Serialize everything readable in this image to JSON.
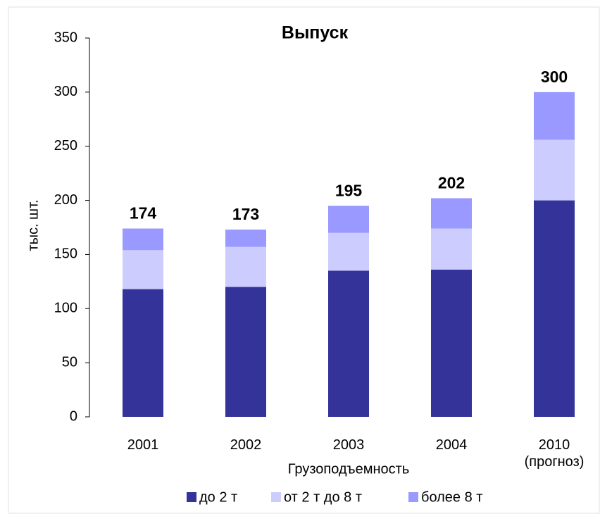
{
  "chart_data": {
    "type": "stacked_bar",
    "title": "Выпуск",
    "y_label": "тыс. шт.",
    "x_label": "Грузоподъемность",
    "categories": [
      "2001",
      "2002",
      "2003",
      "2004",
      "2010\n(прогноз)"
    ],
    "series": [
      {
        "name": "до 2 т",
        "color": "#333399",
        "values": [
          118,
          120,
          135,
          136,
          200
        ]
      },
      {
        "name": "от 2 т до 8 т",
        "color": "#ccccff",
        "values": [
          36,
          37,
          35,
          38,
          56
        ]
      },
      {
        "name": "более 8 т",
        "color": "#9999ff",
        "values": [
          20,
          16,
          25,
          28,
          44
        ]
      }
    ],
    "totals": [
      174,
      173,
      195,
      202,
      300
    ],
    "ylim": [
      0,
      350
    ],
    "yticks": [
      0,
      50,
      100,
      150,
      200,
      250,
      300,
      350
    ],
    "grid": false,
    "legend": "bottom"
  }
}
